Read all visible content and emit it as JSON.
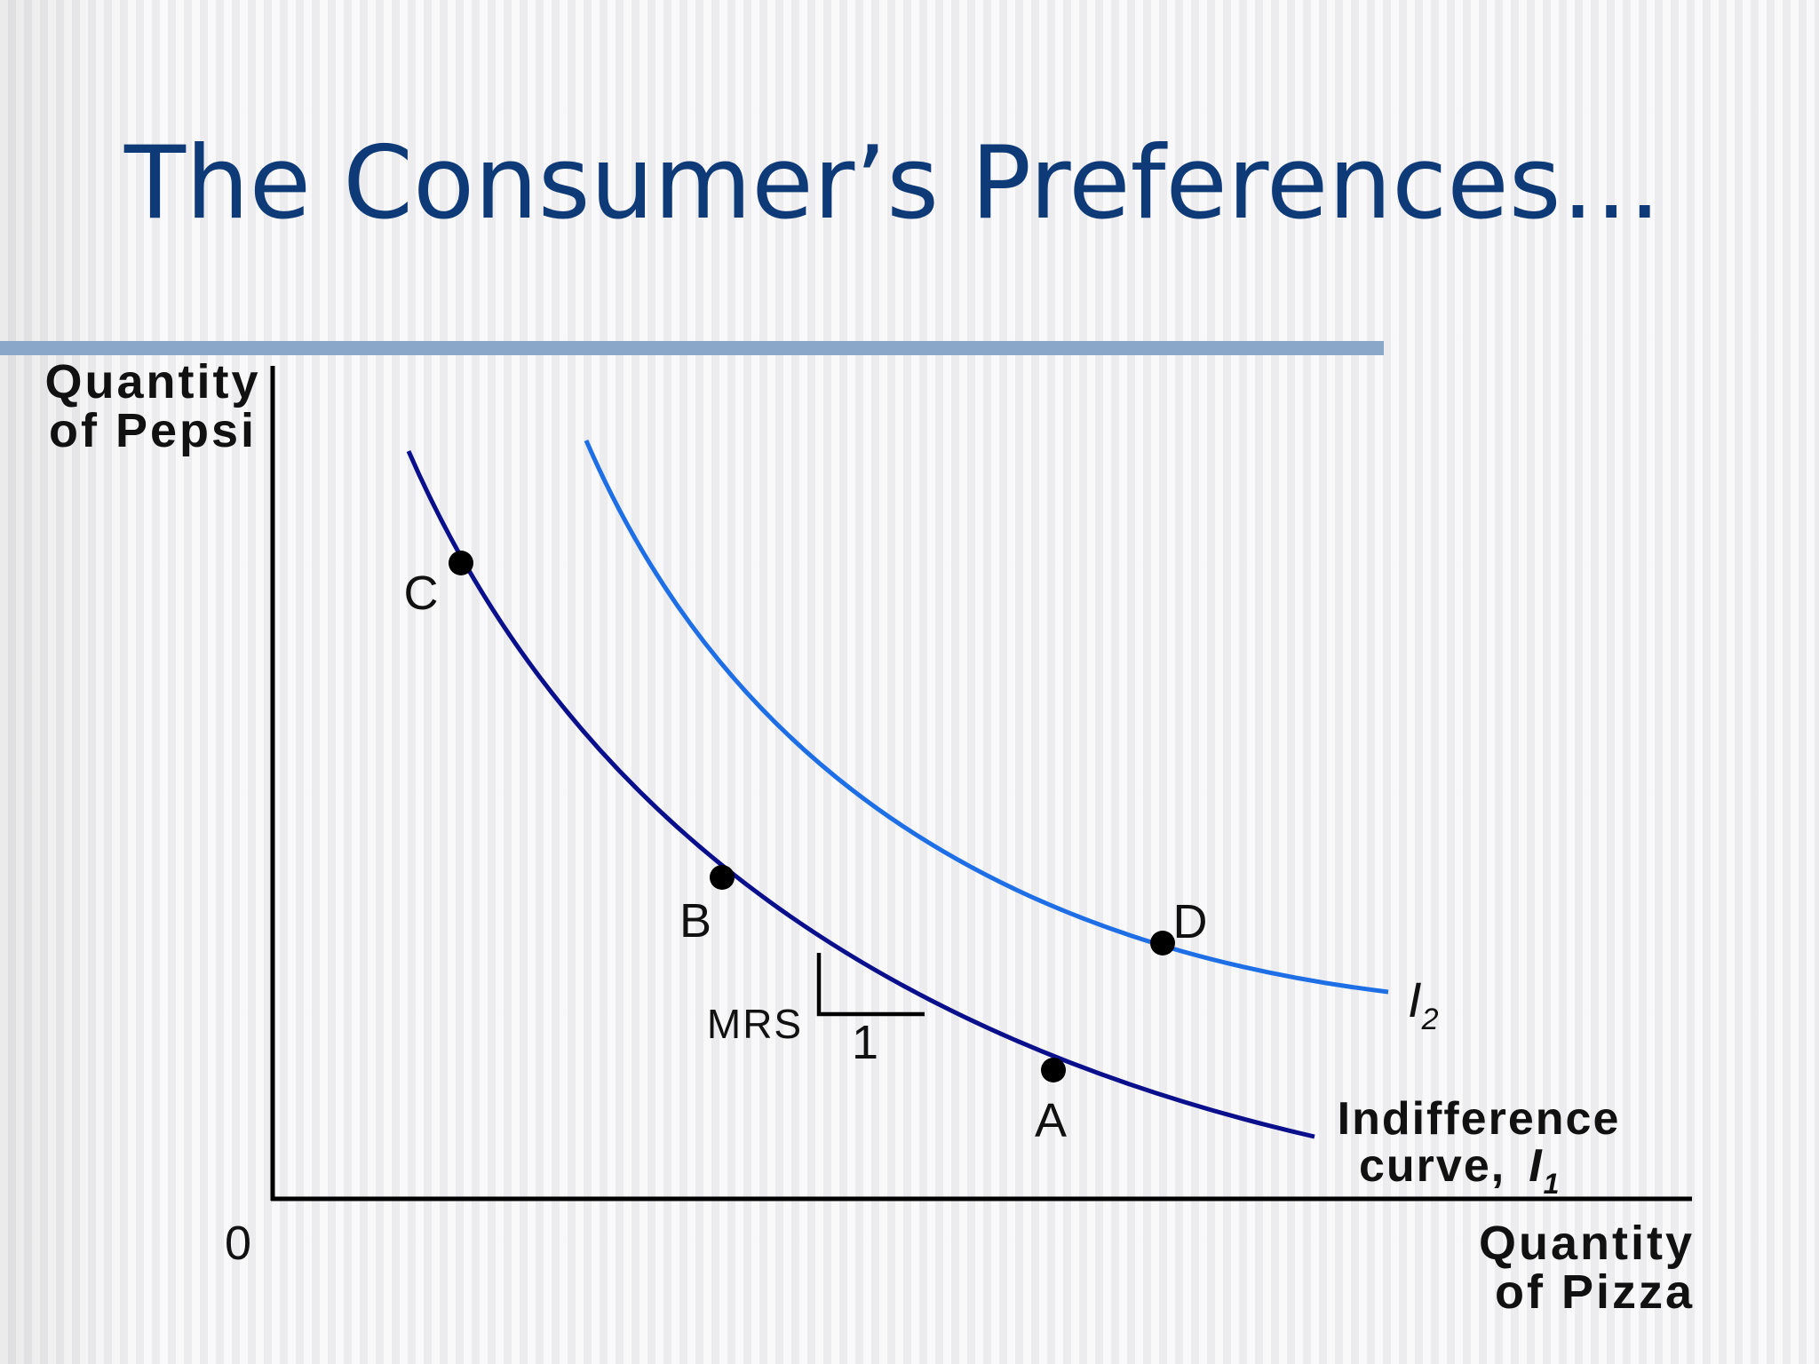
{
  "title": "The Consumer’s Preferences…",
  "axes": {
    "y_label_line1": "Quantity",
    "y_label_line2": "of Pepsi",
    "x_label_line1": "Quantity",
    "x_label_line2": "of Pizza",
    "origin": "0"
  },
  "points": {
    "C": "C",
    "B": "B",
    "A": "A",
    "D": "D"
  },
  "curves": {
    "i1_label_line1": "Indifference",
    "i1_label_line2": "curve,",
    "i1_symbol": "I",
    "i1_subscript": "1",
    "i2_symbol": "I",
    "i2_subscript": "2"
  },
  "mrs": {
    "label": "MRS",
    "run": "1"
  },
  "colors": {
    "title": "#0f3a78",
    "rule": "#8aa6c8",
    "curve_i1": "#0a0f8c",
    "curve_i2": "#1e6fe6",
    "axes": "#000000"
  }
}
